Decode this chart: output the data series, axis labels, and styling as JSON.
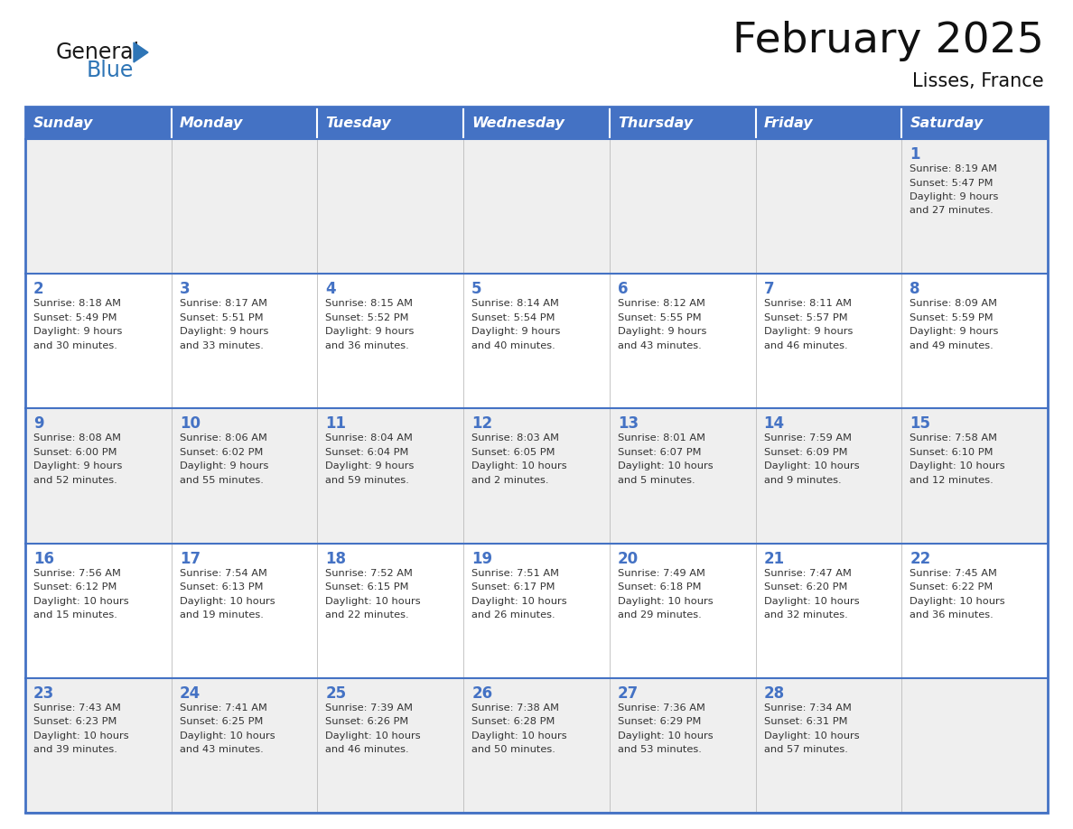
{
  "title": "February 2025",
  "subtitle": "Lisses, France",
  "days_of_week": [
    "Sunday",
    "Monday",
    "Tuesday",
    "Wednesday",
    "Thursday",
    "Friday",
    "Saturday"
  ],
  "header_bg": "#4472C4",
  "header_text": "#FFFFFF",
  "cell_bg_light": "#EFEFEF",
  "cell_bg_white": "#FFFFFF",
  "separator_color": "#4472C4",
  "day_num_color": "#4472C4",
  "text_color": "#333333",
  "logo_general_color": "#1a1a1a",
  "logo_blue_color": "#2E75B6",
  "calendar_data": [
    [
      null,
      null,
      null,
      null,
      null,
      null,
      {
        "day": 1,
        "sunrise": "8:19 AM",
        "sunset": "5:47 PM",
        "daylight": "9 hours and 27 minutes."
      }
    ],
    [
      {
        "day": 2,
        "sunrise": "8:18 AM",
        "sunset": "5:49 PM",
        "daylight": "9 hours and 30 minutes."
      },
      {
        "day": 3,
        "sunrise": "8:17 AM",
        "sunset": "5:51 PM",
        "daylight": "9 hours and 33 minutes."
      },
      {
        "day": 4,
        "sunrise": "8:15 AM",
        "sunset": "5:52 PM",
        "daylight": "9 hours and 36 minutes."
      },
      {
        "day": 5,
        "sunrise": "8:14 AM",
        "sunset": "5:54 PM",
        "daylight": "9 hours and 40 minutes."
      },
      {
        "day": 6,
        "sunrise": "8:12 AM",
        "sunset": "5:55 PM",
        "daylight": "9 hours and 43 minutes."
      },
      {
        "day": 7,
        "sunrise": "8:11 AM",
        "sunset": "5:57 PM",
        "daylight": "9 hours and 46 minutes."
      },
      {
        "day": 8,
        "sunrise": "8:09 AM",
        "sunset": "5:59 PM",
        "daylight": "9 hours and 49 minutes."
      }
    ],
    [
      {
        "day": 9,
        "sunrise": "8:08 AM",
        "sunset": "6:00 PM",
        "daylight": "9 hours and 52 minutes."
      },
      {
        "day": 10,
        "sunrise": "8:06 AM",
        "sunset": "6:02 PM",
        "daylight": "9 hours and 55 minutes."
      },
      {
        "day": 11,
        "sunrise": "8:04 AM",
        "sunset": "6:04 PM",
        "daylight": "9 hours and 59 minutes."
      },
      {
        "day": 12,
        "sunrise": "8:03 AM",
        "sunset": "6:05 PM",
        "daylight": "10 hours and 2 minutes."
      },
      {
        "day": 13,
        "sunrise": "8:01 AM",
        "sunset": "6:07 PM",
        "daylight": "10 hours and 5 minutes."
      },
      {
        "day": 14,
        "sunrise": "7:59 AM",
        "sunset": "6:09 PM",
        "daylight": "10 hours and 9 minutes."
      },
      {
        "day": 15,
        "sunrise": "7:58 AM",
        "sunset": "6:10 PM",
        "daylight": "10 hours and 12 minutes."
      }
    ],
    [
      {
        "day": 16,
        "sunrise": "7:56 AM",
        "sunset": "6:12 PM",
        "daylight": "10 hours and 15 minutes."
      },
      {
        "day": 17,
        "sunrise": "7:54 AM",
        "sunset": "6:13 PM",
        "daylight": "10 hours and 19 minutes."
      },
      {
        "day": 18,
        "sunrise": "7:52 AM",
        "sunset": "6:15 PM",
        "daylight": "10 hours and 22 minutes."
      },
      {
        "day": 19,
        "sunrise": "7:51 AM",
        "sunset": "6:17 PM",
        "daylight": "10 hours and 26 minutes."
      },
      {
        "day": 20,
        "sunrise": "7:49 AM",
        "sunset": "6:18 PM",
        "daylight": "10 hours and 29 minutes."
      },
      {
        "day": 21,
        "sunrise": "7:47 AM",
        "sunset": "6:20 PM",
        "daylight": "10 hours and 32 minutes."
      },
      {
        "day": 22,
        "sunrise": "7:45 AM",
        "sunset": "6:22 PM",
        "daylight": "10 hours and 36 minutes."
      }
    ],
    [
      {
        "day": 23,
        "sunrise": "7:43 AM",
        "sunset": "6:23 PM",
        "daylight": "10 hours and 39 minutes."
      },
      {
        "day": 24,
        "sunrise": "7:41 AM",
        "sunset": "6:25 PM",
        "daylight": "10 hours and 43 minutes."
      },
      {
        "day": 25,
        "sunrise": "7:39 AM",
        "sunset": "6:26 PM",
        "daylight": "10 hours and 46 minutes."
      },
      {
        "day": 26,
        "sunrise": "7:38 AM",
        "sunset": "6:28 PM",
        "daylight": "10 hours and 50 minutes."
      },
      {
        "day": 27,
        "sunrise": "7:36 AM",
        "sunset": "6:29 PM",
        "daylight": "10 hours and 53 minutes."
      },
      {
        "day": 28,
        "sunrise": "7:34 AM",
        "sunset": "6:31 PM",
        "daylight": "10 hours and 57 minutes."
      },
      null
    ]
  ]
}
